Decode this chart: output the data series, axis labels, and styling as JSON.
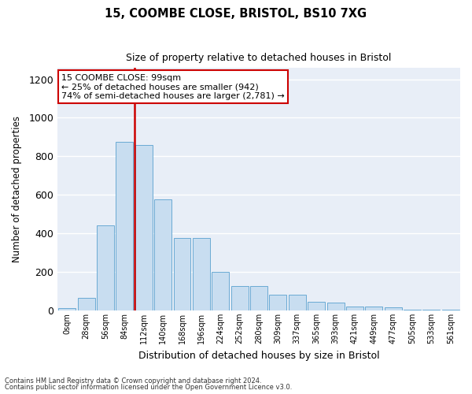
{
  "title1": "15, COOMBE CLOSE, BRISTOL, BS10 7XG",
  "title2": "Size of property relative to detached houses in Bristol",
  "xlabel": "Distribution of detached houses by size in Bristol",
  "ylabel": "Number of detached properties",
  "bar_color": "#c8ddf0",
  "bar_edge_color": "#6aaad4",
  "vline_color": "#cc0000",
  "vline_x": 3.5,
  "annotation_text": "15 COOMBE CLOSE: 99sqm\n← 25% of detached houses are smaller (942)\n74% of semi-detached houses are larger (2,781) →",
  "annotation_box_color": "#ffffff",
  "annotation_box_edge": "#cc0000",
  "categories": [
    "0sqm",
    "28sqm",
    "56sqm",
    "84sqm",
    "112sqm",
    "140sqm",
    "168sqm",
    "196sqm",
    "224sqm",
    "252sqm",
    "280sqm",
    "309sqm",
    "337sqm",
    "365sqm",
    "393sqm",
    "421sqm",
    "449sqm",
    "477sqm",
    "505sqm",
    "533sqm",
    "561sqm"
  ],
  "bar_heights": [
    10,
    65,
    440,
    875,
    860,
    575,
    375,
    375,
    200,
    125,
    125,
    80,
    80,
    45,
    40,
    20,
    18,
    15,
    5,
    2,
    2
  ],
  "ylim": [
    0,
    1260
  ],
  "yticks": [
    0,
    200,
    400,
    600,
    800,
    1000,
    1200
  ],
  "fig_bg": "#ffffff",
  "plot_bg": "#e8eef7",
  "grid_color": "#ffffff",
  "footer1": "Contains HM Land Registry data © Crown copyright and database right 2024.",
  "footer2": "Contains public sector information licensed under the Open Government Licence v3.0."
}
